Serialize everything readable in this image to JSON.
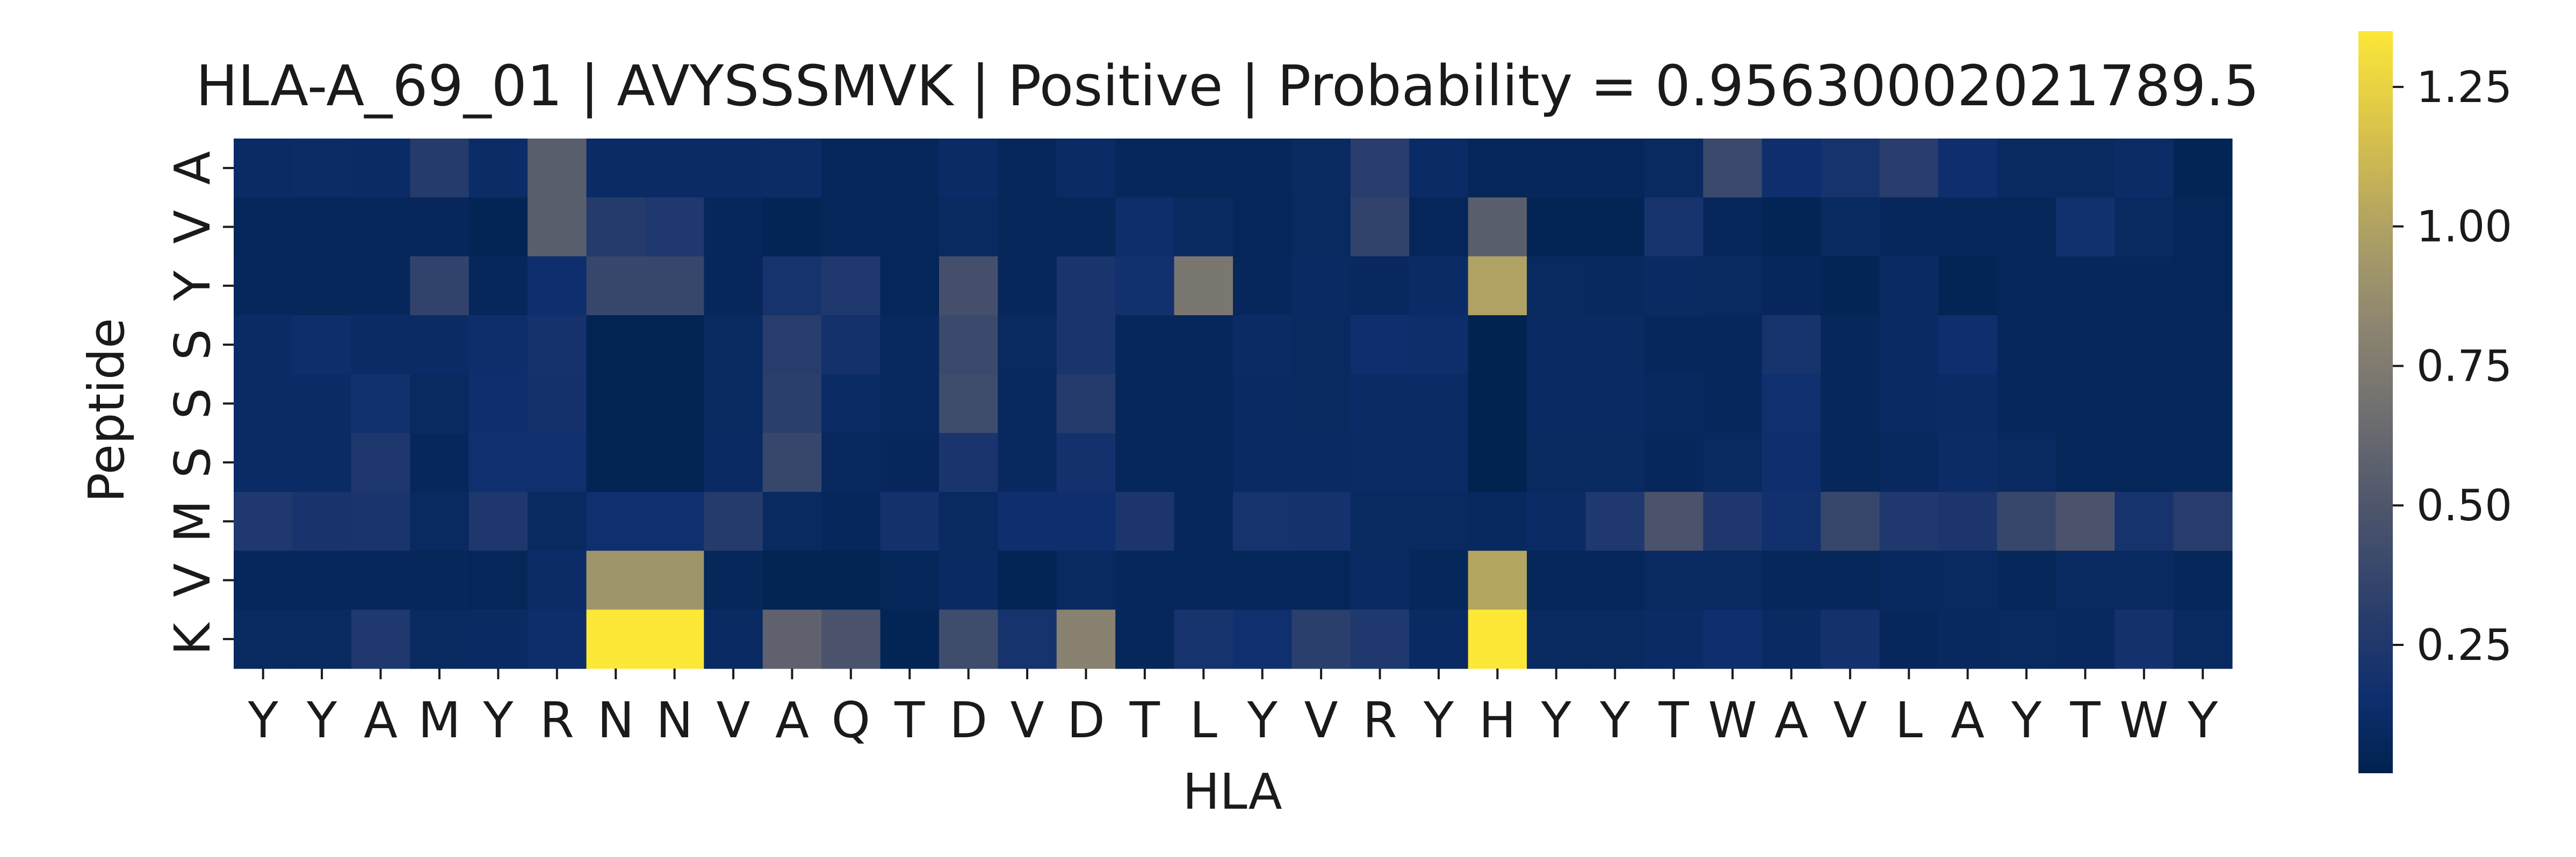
{
  "chart_data": {
    "type": "heatmap",
    "title": "HLA-A_69_01 | AVYSSSMVK | Positive | Probability = 0.95630002021789.5",
    "xlabel": "HLA",
    "ylabel": "Peptide",
    "x_categories": [
      "Y",
      "Y",
      "A",
      "M",
      "Y",
      "R",
      "N",
      "N",
      "V",
      "A",
      "Q",
      "T",
      "D",
      "V",
      "D",
      "T",
      "L",
      "Y",
      "V",
      "R",
      "Y",
      "H",
      "Y",
      "Y",
      "T",
      "W",
      "A",
      "V",
      "L",
      "A",
      "Y",
      "T",
      "W",
      "Y"
    ],
    "y_categories": [
      "A",
      "V",
      "Y",
      "S",
      "S",
      "S",
      "M",
      "V",
      "K"
    ],
    "colormap": "cividis",
    "colorbar": {
      "min": 0.02,
      "max": 1.35,
      "ticks": [
        0.25,
        0.5,
        0.75,
        1.0,
        1.25
      ],
      "tick_labels": [
        "0.25",
        "0.50",
        "0.75",
        "1.00",
        "1.25"
      ]
    },
    "values": [
      [
        0.12,
        0.13,
        0.12,
        0.28,
        0.13,
        0.55,
        0.12,
        0.12,
        0.12,
        0.13,
        0.06,
        0.08,
        0.12,
        0.08,
        0.12,
        0.07,
        0.07,
        0.07,
        0.1,
        0.3,
        0.12,
        0.06,
        0.08,
        0.08,
        0.1,
        0.4,
        0.15,
        0.2,
        0.3,
        0.15,
        0.1,
        0.1,
        0.13,
        0.05
      ],
      [
        0.06,
        0.06,
        0.06,
        0.08,
        0.05,
        0.55,
        0.28,
        0.25,
        0.08,
        0.05,
        0.06,
        0.06,
        0.1,
        0.07,
        0.06,
        0.14,
        0.1,
        0.06,
        0.1,
        0.35,
        0.06,
        0.55,
        0.05,
        0.05,
        0.2,
        0.08,
        0.05,
        0.1,
        0.08,
        0.07,
        0.06,
        0.17,
        0.1,
        0.06
      ],
      [
        0.08,
        0.07,
        0.08,
        0.35,
        0.08,
        0.15,
        0.38,
        0.38,
        0.08,
        0.2,
        0.25,
        0.06,
        0.45,
        0.08,
        0.22,
        0.17,
        0.72,
        0.08,
        0.11,
        0.09,
        0.12,
        1.0,
        0.1,
        0.09,
        0.11,
        0.1,
        0.08,
        0.05,
        0.11,
        0.05,
        0.06,
        0.08,
        0.08,
        0.06
      ],
      [
        0.12,
        0.14,
        0.12,
        0.12,
        0.14,
        0.19,
        0.04,
        0.04,
        0.1,
        0.3,
        0.18,
        0.09,
        0.4,
        0.1,
        0.22,
        0.08,
        0.08,
        0.12,
        0.1,
        0.15,
        0.14,
        0.03,
        0.11,
        0.11,
        0.08,
        0.08,
        0.2,
        0.07,
        0.11,
        0.15,
        0.08,
        0.07,
        0.07,
        0.08
      ],
      [
        0.12,
        0.12,
        0.17,
        0.1,
        0.15,
        0.18,
        0.04,
        0.04,
        0.1,
        0.32,
        0.12,
        0.09,
        0.42,
        0.09,
        0.28,
        0.08,
        0.08,
        0.11,
        0.1,
        0.12,
        0.12,
        0.03,
        0.11,
        0.11,
        0.09,
        0.08,
        0.16,
        0.07,
        0.11,
        0.12,
        0.08,
        0.07,
        0.06,
        0.07
      ],
      [
        0.12,
        0.12,
        0.24,
        0.08,
        0.16,
        0.16,
        0.04,
        0.04,
        0.11,
        0.38,
        0.09,
        0.08,
        0.22,
        0.09,
        0.18,
        0.07,
        0.07,
        0.11,
        0.11,
        0.12,
        0.12,
        0.03,
        0.1,
        0.1,
        0.08,
        0.1,
        0.15,
        0.07,
        0.09,
        0.13,
        0.1,
        0.07,
        0.06,
        0.07
      ],
      [
        0.25,
        0.21,
        0.22,
        0.1,
        0.24,
        0.1,
        0.16,
        0.16,
        0.28,
        0.1,
        0.08,
        0.18,
        0.1,
        0.15,
        0.15,
        0.23,
        0.08,
        0.2,
        0.19,
        0.1,
        0.1,
        0.09,
        0.12,
        0.25,
        0.48,
        0.24,
        0.17,
        0.38,
        0.25,
        0.23,
        0.38,
        0.48,
        0.2,
        0.3
      ],
      [
        0.07,
        0.08,
        0.08,
        0.07,
        0.06,
        0.13,
        0.92,
        0.92,
        0.07,
        0.04,
        0.04,
        0.06,
        0.11,
        0.05,
        0.1,
        0.07,
        0.07,
        0.07,
        0.06,
        0.11,
        0.07,
        1.02,
        0.06,
        0.06,
        0.1,
        0.1,
        0.07,
        0.07,
        0.09,
        0.1,
        0.07,
        0.1,
        0.1,
        0.07
      ],
      [
        0.1,
        0.1,
        0.25,
        0.1,
        0.11,
        0.14,
        1.35,
        1.35,
        0.11,
        0.58,
        0.48,
        0.05,
        0.42,
        0.2,
        0.8,
        0.07,
        0.2,
        0.16,
        0.32,
        0.25,
        0.11,
        1.35,
        0.1,
        0.1,
        0.12,
        0.15,
        0.11,
        0.18,
        0.08,
        0.09,
        0.1,
        0.09,
        0.18,
        0.1
      ]
    ]
  }
}
